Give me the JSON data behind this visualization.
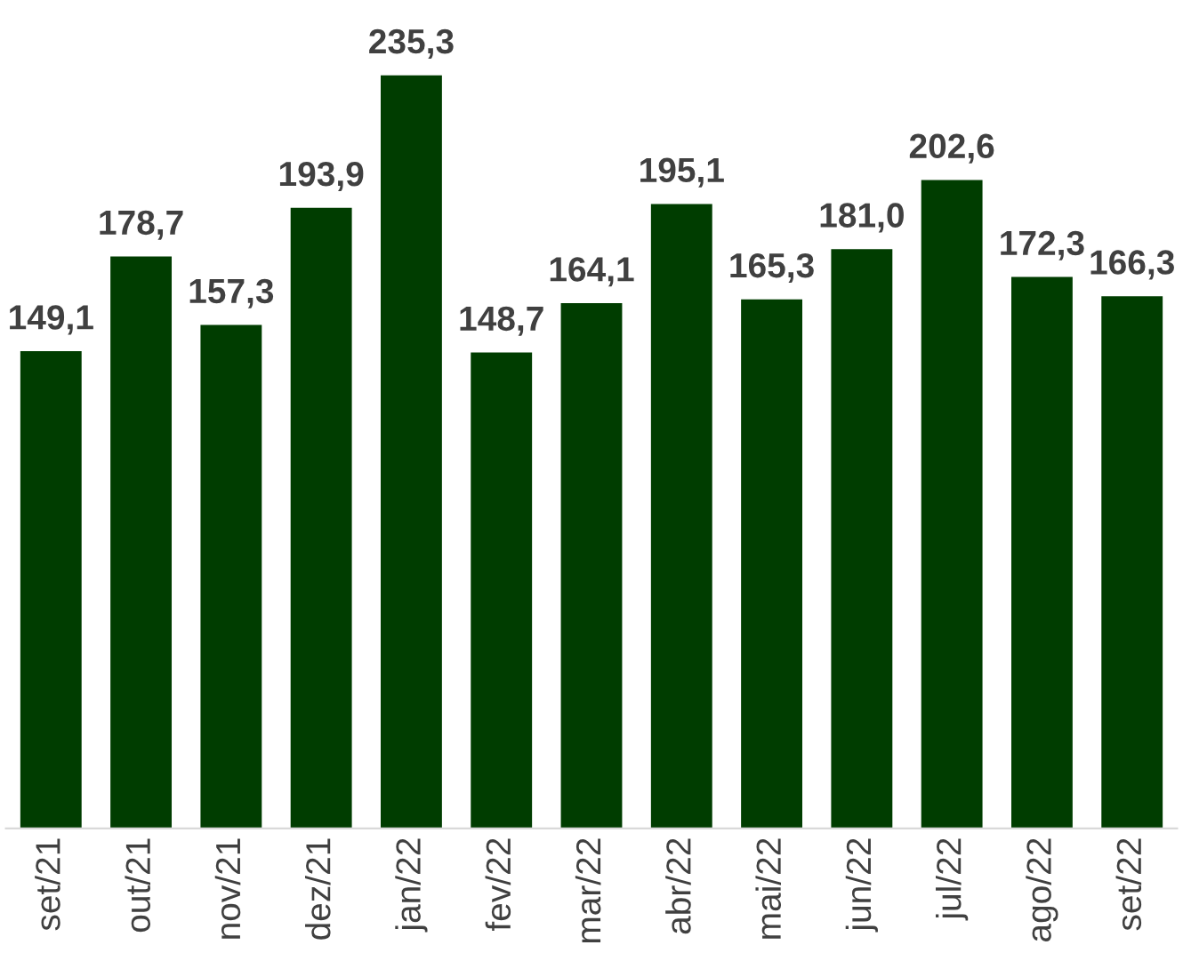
{
  "chart_data": {
    "type": "bar",
    "categories": [
      "set/21",
      "out/21",
      "nov/21",
      "dez/21",
      "jan/22",
      "fev/22",
      "mar/22",
      "abr/22",
      "mai/22",
      "jun/22",
      "jul/22",
      "ago/22",
      "set/22"
    ],
    "values": [
      149.1,
      178.7,
      157.3,
      193.9,
      235.3,
      148.7,
      164.1,
      195.1,
      165.3,
      181.0,
      202.6,
      172.3,
      166.3
    ],
    "value_labels": [
      "149,1",
      "178,7",
      "157,3",
      "193,9",
      "235,3",
      "148,7",
      "164,1",
      "195,1",
      "165,3",
      "181,0",
      "202,6",
      "172,3",
      "166,3"
    ],
    "color": "#003d00",
    "grid": false,
    "legend": false,
    "tick_labels": "x"
  }
}
